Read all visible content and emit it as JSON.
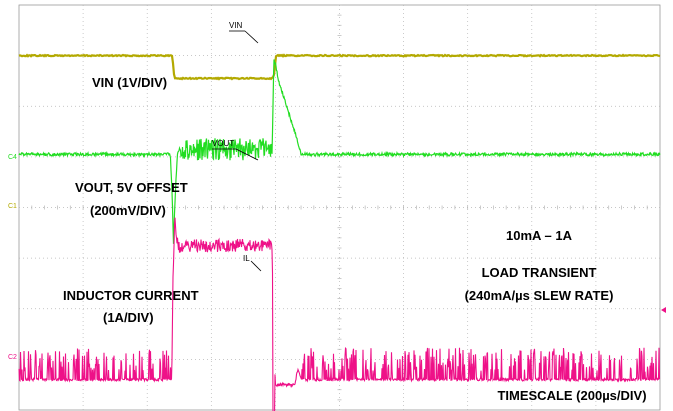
{
  "chart_data": {
    "type": "line",
    "title": "",
    "xlabel": "TIMESCALE (200µs/DIV)",
    "ylabel": "",
    "grid": true,
    "grid_divisions": {
      "x": 10,
      "y": 8
    },
    "time_per_div_us": 200,
    "annotations": {
      "vin": "VIN (1V/DIV)",
      "vout_1": "VOUT, 5V OFFSET",
      "vout_2": "(200mV/DIV)",
      "il_1": "INDUCTOR CURRENT",
      "il_2": "(1A/DIV)",
      "load_1": "10mA – 1A",
      "load_2": "LOAD TRANSIENT",
      "load_3": "(240mA/µs SLEW RATE)",
      "timescale": "TIMESCALE (200µs/DIV)"
    },
    "trace_markers": {
      "vin": "VIN",
      "vout": "VOUT",
      "il": "IL"
    },
    "channel_markers": {
      "c4": "C4",
      "c1": "C1",
      "c2": "C2"
    },
    "load_step": {
      "low": "10mA",
      "high": "1A",
      "slew_rate": "240mA/µs",
      "step_up_us": 480,
      "step_down_us": 790
    },
    "series": [
      {
        "name": "VIN",
        "color": "#b3a900",
        "x_us": [
          0,
          478,
          485,
          492,
          788,
          795,
          802,
          1310
        ],
        "y_div": [
          7.0,
          7.0,
          6.55,
          6.55,
          6.55,
          6.6,
          7.0,
          7.0
        ]
      },
      {
        "name": "VOUT",
        "color": "#22dd22",
        "x_us": [
          0,
          472,
          478,
          482,
          486,
          490,
          495,
          500,
          505,
          508,
          790,
          795,
          800,
          810,
          830,
          850,
          870,
          880,
          1310
        ],
        "y_div": [
          5.05,
          5.05,
          4.2,
          3.3,
          4.0,
          4.6,
          5.1,
          5.15,
          5.15,
          5.15,
          5.15,
          6.9,
          6.85,
          6.5,
          6.1,
          5.7,
          5.3,
          5.05,
          5.05
        ]
      },
      {
        "name": "INDUCTOR CURRENT",
        "color": "#ee1188",
        "x_us": [
          0,
          476,
          478,
          480,
          484,
          486,
          490,
          496,
          500,
          505,
          785,
          790,
          793,
          800,
          810,
          830,
          850,
          860,
          870,
          880,
          1310
        ],
        "y_div": [
          0.6,
          0.6,
          1.2,
          2.5,
          3.3,
          3.85,
          3.5,
          3.25,
          3.2,
          3.25,
          3.25,
          3.25,
          1.5,
          0.5,
          0.5,
          0.5,
          0.5,
          0.5,
          0.8,
          0.6,
          0.6
        ]
      }
    ]
  }
}
